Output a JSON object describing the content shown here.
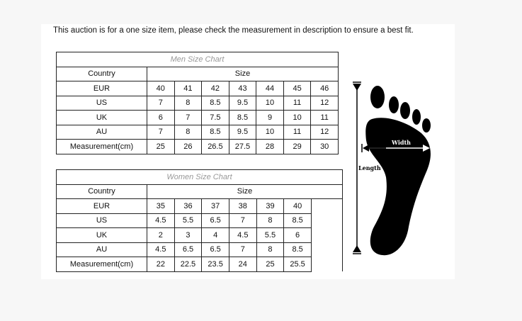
{
  "notice": "This auction is for a one size item, please check the measurement in description to ensure a best fit.",
  "men_chart": {
    "title": "Men Size Chart",
    "country_header": "Country",
    "size_header": "Size",
    "rows": [
      {
        "label": "EUR",
        "values": [
          "40",
          "41",
          "42",
          "43",
          "44",
          "45",
          "46"
        ]
      },
      {
        "label": "US",
        "values": [
          "7",
          "8",
          "8.5",
          "9.5",
          "10",
          "11",
          "12"
        ]
      },
      {
        "label": "UK",
        "values": [
          "6",
          "7",
          "7.5",
          "8.5",
          "9",
          "10",
          "11"
        ]
      },
      {
        "label": "AU",
        "values": [
          "7",
          "8",
          "8.5",
          "9.5",
          "10",
          "11",
          "12"
        ]
      },
      {
        "label": "Measurement(cm)",
        "values": [
          "25",
          "26",
          "26.5",
          "27.5",
          "28",
          "29",
          "30"
        ]
      }
    ]
  },
  "women_chart": {
    "title": "Women Size Chart",
    "country_header": "Country",
    "size_header": "Size",
    "rows": [
      {
        "label": "EUR",
        "values": [
          "35",
          "36",
          "37",
          "38",
          "39",
          "40"
        ]
      },
      {
        "label": "US",
        "values": [
          "4.5",
          "5.5",
          "6.5",
          "7",
          "8",
          "8.5"
        ]
      },
      {
        "label": "UK",
        "values": [
          "2",
          "3",
          "4",
          "4.5",
          "5.5",
          "6"
        ]
      },
      {
        "label": "AU",
        "values": [
          "4.5",
          "6.5",
          "6.5",
          "7",
          "8",
          "8.5"
        ]
      },
      {
        "label": "Measurement(cm)",
        "values": [
          "22",
          "22.5",
          "23.5",
          "24",
          "25",
          "25.5"
        ]
      }
    ]
  },
  "foot_diagram": {
    "width_label": "Width",
    "length_label": "Length"
  }
}
